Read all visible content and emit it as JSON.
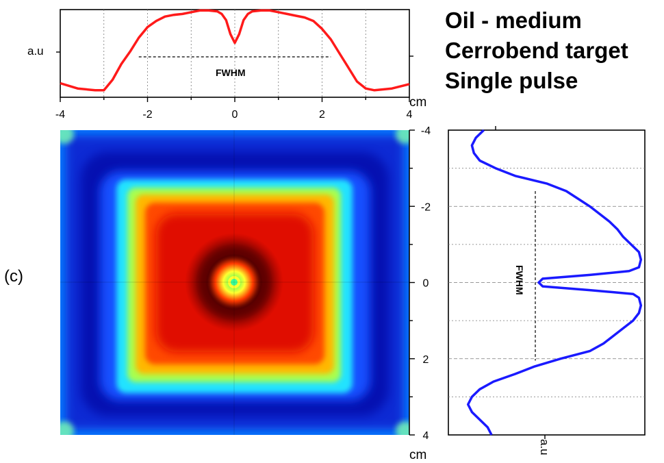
{
  "panel_label": "(c)",
  "title_lines": [
    "Oil - medium",
    "Cerrobend target",
    "Single pulse"
  ],
  "colors": {
    "top_profile": "#ff1a1a",
    "side_profile": "#1a1aff",
    "heatmap_colormap": "jet"
  },
  "chart_data": [
    {
      "type": "line",
      "name": "top-profile",
      "x_unit": "cm",
      "ylabel": "a.u",
      "xlim": [
        -4,
        4
      ],
      "xticks": [
        -4,
        -2,
        0,
        2,
        4
      ],
      "xtick_labels": [
        "-4",
        "-2",
        "0",
        "2",
        "4"
      ],
      "grid": true,
      "annotation": "FWHM",
      "fwhm_x": [
        -2.2,
        2.2
      ],
      "x": [
        -4.0,
        -3.6,
        -3.2,
        -3.0,
        -2.8,
        -2.6,
        -2.4,
        -2.2,
        -2.0,
        -1.8,
        -1.6,
        -1.4,
        -1.2,
        -1.0,
        -0.8,
        -0.6,
        -0.4,
        -0.3,
        -0.2,
        -0.1,
        0.0,
        0.1,
        0.2,
        0.3,
        0.4,
        0.6,
        0.8,
        1.0,
        1.2,
        1.4,
        1.6,
        1.8,
        2.0,
        2.2,
        2.4,
        2.6,
        2.8,
        3.0,
        3.2,
        3.6,
        4.0
      ],
      "y": [
        0.16,
        0.1,
        0.08,
        0.08,
        0.2,
        0.38,
        0.52,
        0.68,
        0.8,
        0.87,
        0.92,
        0.94,
        0.95,
        0.97,
        0.99,
        0.99,
        0.98,
        0.95,
        0.88,
        0.72,
        0.62,
        0.72,
        0.88,
        0.95,
        0.98,
        0.99,
        0.99,
        0.97,
        0.95,
        0.93,
        0.91,
        0.87,
        0.78,
        0.66,
        0.5,
        0.34,
        0.18,
        0.1,
        0.08,
        0.1,
        0.15
      ]
    },
    {
      "type": "heatmap",
      "name": "beam-image",
      "colormap": "jet",
      "extent_cm": [
        -4,
        4,
        -4,
        4
      ],
      "x_unit": "cm"
    },
    {
      "type": "line",
      "name": "side-profile",
      "orientation": "vertical",
      "xlabel": "a.u",
      "y_unit": "cm",
      "ylim": [
        -4,
        4
      ],
      "yticks": [
        -4,
        -2,
        0,
        2,
        4
      ],
      "ytick_labels": [
        "-4",
        "-2",
        "0",
        "2",
        "4"
      ],
      "grid": true,
      "annotation": "FWHM",
      "fwhm_y": [
        -2.4,
        2.05
      ],
      "y": [
        -4.0,
        -3.8,
        -3.6,
        -3.4,
        -3.2,
        -3.0,
        -2.8,
        -2.6,
        -2.4,
        -2.2,
        -2.0,
        -1.8,
        -1.6,
        -1.4,
        -1.2,
        -1.0,
        -0.8,
        -0.6,
        -0.4,
        -0.3,
        -0.2,
        -0.1,
        0.0,
        0.1,
        0.2,
        0.3,
        0.4,
        0.6,
        0.8,
        1.0,
        1.2,
        1.4,
        1.6,
        1.8,
        2.0,
        2.2,
        2.4,
        2.6,
        2.8,
        3.0,
        3.2,
        3.4,
        3.6,
        3.8,
        4.0
      ],
      "x": [
        0.18,
        0.14,
        0.12,
        0.13,
        0.16,
        0.24,
        0.34,
        0.5,
        0.6,
        0.66,
        0.72,
        0.77,
        0.82,
        0.86,
        0.89,
        0.93,
        0.97,
        0.98,
        0.97,
        0.92,
        0.72,
        0.48,
        0.46,
        0.48,
        0.72,
        0.94,
        0.97,
        0.98,
        0.97,
        0.94,
        0.89,
        0.84,
        0.79,
        0.72,
        0.57,
        0.44,
        0.34,
        0.23,
        0.16,
        0.12,
        0.1,
        0.12,
        0.16,
        0.2,
        0.22
      ]
    }
  ],
  "labels": {
    "fwhm": "FWHM",
    "top_unit": "cm",
    "bottom_unit": "cm",
    "side_axis_label": "a.u",
    "top_axis_label": "a.u"
  }
}
